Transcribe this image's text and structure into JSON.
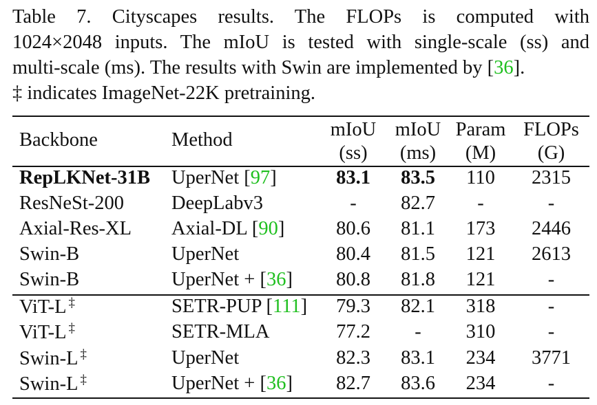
{
  "caption": {
    "line1": "Table 7.  Cityscapes results.  The FLOPs is computed with",
    "line2": "1024×2048 inputs. The mIoU is tested with single-scale (ss) and",
    "line3_text": "multi-scale (ms). The results with Swin are implemented by [",
    "line3_cite": "36",
    "line3_end": "].",
    "line4": "‡ indicates ImageNet-22K pretraining."
  },
  "table": {
    "headers": {
      "backbone": "Backbone",
      "method": "Method",
      "ss_top": "mIoU",
      "ss_bottom": "(ss)",
      "ms_top": "mIoU",
      "ms_bottom": "(ms)",
      "param_top": "Param",
      "param_bottom": "(M)",
      "flops_top": "FLOPs",
      "flops_bottom": "(G)"
    },
    "rows": [
      {
        "backbone": "RepLKNet-31B",
        "dagger": "",
        "method": "UperNet [",
        "cite": "97",
        "method_end": "]",
        "ss": "83.1",
        "ms": "83.5",
        "param": "110",
        "flops": "2315"
      },
      {
        "backbone": "ResNeSt-200",
        "dagger": "",
        "method": "DeepLabv3",
        "cite": "",
        "method_end": "",
        "ss": "-",
        "ms": "82.7",
        "param": "-",
        "flops": "-"
      },
      {
        "backbone": "Axial-Res-XL",
        "dagger": "",
        "method": "Axial-DL [",
        "cite": "90",
        "method_end": "]",
        "ss": "80.6",
        "ms": "81.1",
        "param": "173",
        "flops": "2446"
      },
      {
        "backbone": "Swin-B",
        "dagger": "",
        "method": "UperNet",
        "cite": "",
        "method_end": "",
        "ss": "80.4",
        "ms": "81.5",
        "param": "121",
        "flops": "2613"
      },
      {
        "backbone": "Swin-B",
        "dagger": "",
        "method": "UperNet + [",
        "cite": "36",
        "method_end": "]",
        "ss": "80.8",
        "ms": "81.8",
        "param": "121",
        "flops": "-"
      },
      {
        "backbone": "ViT-L",
        "dagger": "‡",
        "method": "SETR-PUP [",
        "cite": "111",
        "method_end": "]",
        "ss": "79.3",
        "ms": "82.1",
        "param": "318",
        "flops": "-"
      },
      {
        "backbone": "ViT-L",
        "dagger": "‡",
        "method": "SETR-MLA",
        "cite": "",
        "method_end": "",
        "ss": "77.2",
        "ms": "-",
        "param": "310",
        "flops": "-"
      },
      {
        "backbone": "Swin-L",
        "dagger": "‡",
        "method": "UperNet",
        "cite": "",
        "method_end": "",
        "ss": "82.3",
        "ms": "83.1",
        "param": "234",
        "flops": "3771"
      },
      {
        "backbone": "Swin-L",
        "dagger": "‡",
        "method": "UperNet + [",
        "cite": "36",
        "method_end": "]",
        "ss": "82.7",
        "ms": "83.6",
        "param": "234",
        "flops": "-"
      }
    ]
  },
  "colors": {
    "citation": "#1fbf1f",
    "text": "#111111"
  }
}
